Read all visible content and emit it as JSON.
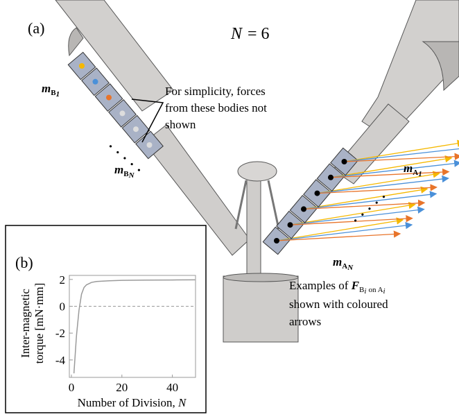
{
  "panel_a": {
    "label": "(a)",
    "n_var": "N",
    "n_rest": "= 6",
    "mass_labels": [
      {
        "base": "m",
        "sub": "B",
        "index": "1"
      },
      {
        "base": "m",
        "sub": "B",
        "index": "N"
      },
      {
        "base": "m",
        "sub": "A",
        "index": "1"
      },
      {
        "base": "m",
        "sub": "A",
        "index": "N"
      }
    ],
    "note": [
      "For simplicity, forces",
      "from these bodies not",
      "shown"
    ],
    "caption": {
      "prefix": "Examples of",
      "symbol": "F",
      "sub": "B",
      "subsub": "i",
      "mid": "on A",
      "end": "i",
      "lines": [
        "shown with coloured",
        "arrows"
      ]
    }
  },
  "chart_data": {
    "type": "line",
    "label": "(b)",
    "ylabel": [
      "Inter-magnetic",
      "torque [mN·mm]"
    ],
    "xlabel": "Number of Division,",
    "xlabel_var": "N",
    "series": [
      {
        "color": "#9a9a9a",
        "x": [
          1,
          2,
          3,
          4,
          5,
          6,
          8,
          10,
          15,
          20,
          30,
          40,
          49
        ],
        "values": [
          -5,
          -2.2,
          -0.3,
          0.9,
          1.4,
          1.6,
          1.78,
          1.85,
          1.9,
          1.93,
          1.95,
          1.96,
          1.97
        ]
      }
    ],
    "reference_line": 0,
    "xlim": [
      0,
      50
    ],
    "ylim": [
      -5.3,
      2.3
    ],
    "xticks": [
      0,
      20,
      40
    ],
    "yticks": [
      -4,
      -2,
      0,
      2
    ]
  }
}
